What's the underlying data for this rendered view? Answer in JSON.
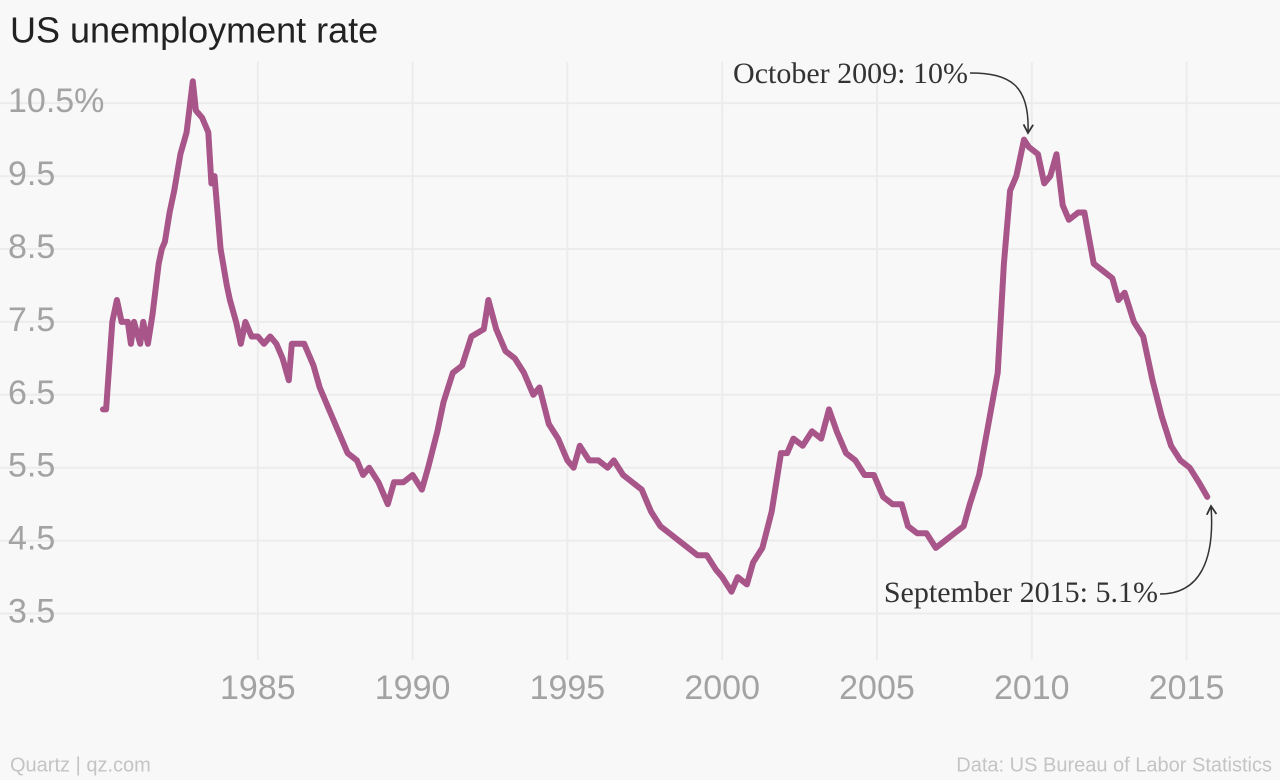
{
  "chart_data": {
    "type": "line",
    "title": "US unemployment rate",
    "credit": "Quartz | qz.com",
    "source": "Data: US Bureau of Labor Statistics",
    "annotations": [
      "October 2009: 10%",
      "September 2015: 5.1%"
    ],
    "xlim": [
      1980,
      2016.5
    ],
    "xticks": [
      1985,
      1990,
      1995,
      2000,
      2005,
      2010,
      2015
    ],
    "ylim": [
      3,
      10.9
    ],
    "yticks": [
      3.5,
      4.5,
      5.5,
      6.5,
      7.5,
      8.5,
      9.5,
      {
        "value": 10.5,
        "label": "10.5%"
      }
    ],
    "grid": true,
    "series": [
      {
        "name": "Unemployment rate",
        "color": "#a8558a",
        "x": [
          1980.0,
          1980.1,
          1980.3,
          1980.45,
          1980.6,
          1980.8,
          1980.9,
          1981.0,
          1981.2,
          1981.3,
          1981.45,
          1981.6,
          1981.8,
          1981.9,
          1982.0,
          1982.15,
          1982.3,
          1982.5,
          1982.7,
          1982.9,
          1983.0,
          1983.2,
          1983.4,
          1983.5,
          1983.6,
          1983.8,
          1984.0,
          1984.1,
          1984.3,
          1984.45,
          1984.6,
          1984.8,
          1985.0,
          1985.2,
          1985.4,
          1985.6,
          1985.8,
          1986.0,
          1986.1,
          1986.5,
          1986.8,
          1987.0,
          1987.3,
          1987.6,
          1987.9,
          1988.2,
          1988.4,
          1988.6,
          1988.9,
          1989.2,
          1989.4,
          1989.7,
          1990.0,
          1990.3,
          1990.5,
          1990.8,
          1991.0,
          1991.3,
          1991.6,
          1991.9,
          1992.3,
          1992.45,
          1992.7,
          1993.0,
          1993.3,
          1993.6,
          1993.9,
          1994.1,
          1994.4,
          1994.7,
          1995.0,
          1995.2,
          1995.4,
          1995.7,
          1996.0,
          1996.3,
          1996.5,
          1996.8,
          1997.1,
          1997.4,
          1997.7,
          1998.0,
          1998.3,
          1998.6,
          1998.9,
          1999.2,
          1999.5,
          1999.8,
          2000.0,
          2000.3,
          2000.5,
          2000.8,
          2001.0,
          2001.3,
          2001.6,
          2001.9,
          2002.1,
          2002.3,
          2002.6,
          2002.9,
          2003.2,
          2003.45,
          2003.7,
          2004.0,
          2004.3,
          2004.6,
          2004.9,
          2005.2,
          2005.5,
          2005.8,
          2006.0,
          2006.3,
          2006.6,
          2006.9,
          2007.2,
          2007.5,
          2007.8,
          2008.0,
          2008.3,
          2008.6,
          2008.9,
          2009.1,
          2009.3,
          2009.5,
          2009.75,
          2009.9,
          2010.2,
          2010.4,
          2010.6,
          2010.8,
          2011.0,
          2011.2,
          2011.5,
          2011.7,
          2012.0,
          2012.3,
          2012.6,
          2012.8,
          2013.0,
          2013.3,
          2013.6,
          2013.9,
          2014.2,
          2014.5,
          2014.8,
          2015.1,
          2015.4,
          2015.67
        ],
        "values": [
          6.3,
          6.3,
          7.5,
          7.8,
          7.5,
          7.5,
          7.2,
          7.5,
          7.2,
          7.5,
          7.2,
          7.6,
          8.3,
          8.5,
          8.6,
          9.0,
          9.3,
          9.8,
          10.1,
          10.8,
          10.4,
          10.3,
          10.1,
          9.4,
          9.5,
          8.5,
          8.0,
          7.8,
          7.5,
          7.2,
          7.5,
          7.3,
          7.3,
          7.2,
          7.3,
          7.2,
          7.0,
          6.7,
          7.2,
          7.2,
          6.9,
          6.6,
          6.3,
          6.0,
          5.7,
          5.6,
          5.4,
          5.5,
          5.3,
          5.0,
          5.3,
          5.3,
          5.4,
          5.2,
          5.5,
          6.0,
          6.4,
          6.8,
          6.9,
          7.3,
          7.4,
          7.8,
          7.4,
          7.1,
          7.0,
          6.8,
          6.5,
          6.6,
          6.1,
          5.9,
          5.6,
          5.5,
          5.8,
          5.6,
          5.6,
          5.5,
          5.6,
          5.4,
          5.3,
          5.2,
          4.9,
          4.7,
          4.6,
          4.5,
          4.4,
          4.3,
          4.3,
          4.1,
          4.0,
          3.8,
          4.0,
          3.9,
          4.2,
          4.4,
          4.9,
          5.7,
          5.7,
          5.9,
          5.8,
          6.0,
          5.9,
          6.3,
          6.0,
          5.7,
          5.6,
          5.4,
          5.4,
          5.1,
          5.0,
          5.0,
          4.7,
          4.6,
          4.6,
          4.4,
          4.5,
          4.6,
          4.7,
          5.0,
          5.4,
          6.1,
          6.8,
          8.3,
          9.3,
          9.5,
          10.0,
          9.9,
          9.8,
          9.4,
          9.5,
          9.8,
          9.1,
          8.9,
          9.0,
          9.0,
          8.3,
          8.2,
          8.1,
          7.8,
          7.9,
          7.5,
          7.3,
          6.7,
          6.2,
          5.8,
          5.6,
          5.5,
          5.3,
          5.1
        ]
      }
    ]
  }
}
